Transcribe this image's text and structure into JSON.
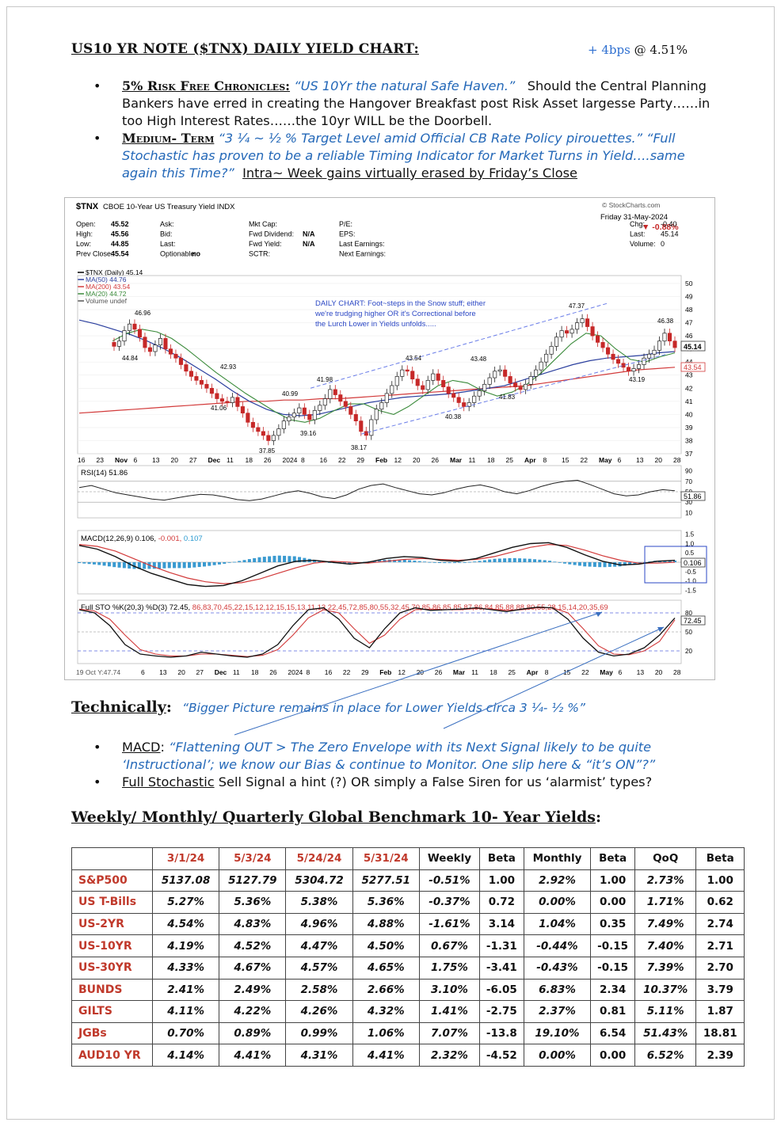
{
  "header": {
    "title": "US10 YR NOTE ($TNX) DAILY YIELD CHART",
    "colon": ":",
    "change_label": "+ 4bps",
    "change_value": "@ 4.51%"
  },
  "bullets_top": [
    {
      "head": "5% Risk Free Chronicles:",
      "quote": "“US 10Yr the natural Safe Haven.”",
      "text": "Should the Central Planning Bankers have erred in creating the Hangover Breakfast post Risk Asset largesse Party……in too High Interest Rates……the 10yr WILL be the Doorbell."
    },
    {
      "head": "Medium- Term",
      "quote": "“3 ¼ ~ ½ % Target Level amid Official CB Rate Policy pirouettes.” “Full Stochastic has proven to be a  reliable Timing Indicator for Market Turns in Yield….same again this Time?”",
      "text": "Intra~ Week gains virtually erased by Friday’s Close"
    }
  ],
  "chart": {
    "symbol": "$TNX",
    "name": "CBOE 10-Year US Treasury Yield INDX",
    "watermark": "© StockCharts.com",
    "date_line": "Friday  31-May-2024",
    "pct_change": "▼ -0.88%",
    "quote_rows": [
      [
        "Open:",
        "45.52",
        "Ask:",
        "",
        "Mkt Cap:",
        "",
        "P/E:",
        "",
        "Chg:",
        "-0.40"
      ],
      [
        "High:",
        "45.56",
        "Bid:",
        "",
        "Fwd Dividend:",
        "N/A",
        "EPS:",
        "",
        "Last:",
        "45.14"
      ],
      [
        "Low:",
        "44.85",
        "Last:",
        "",
        "Fwd Yield:",
        "N/A",
        "Last Earnings:",
        "",
        "Volume:",
        "0"
      ],
      [
        "Prev Close:",
        "45.54",
        "Optionable:",
        "no",
        "SCTR:",
        "",
        "Next Earnings:",
        "",
        "",
        ""
      ]
    ],
    "legend": [
      {
        "label": "$TNX (Daily) 45.14",
        "color": "#000000"
      },
      {
        "label": "MA(50) 44.76",
        "color": "#2b3f9e"
      },
      {
        "label": "MA(200) 43.54",
        "color": "#d23a3a"
      },
      {
        "label": "MA(20) 44.72",
        "color": "#3a8a3a"
      },
      {
        "label": "Volume undef",
        "color": "#555555"
      }
    ],
    "annotation": [
      "DAILY CHART: Foot~steps in the Snow stuff; either",
      "we're trudging higher OR it's Correctional before",
      "the Lurch Lower in Yields unfolds....."
    ],
    "price_labels": [
      "46.96",
      "44.84",
      "42.93",
      "41.06",
      "40.99",
      "41.98",
      "39.16",
      "37.85",
      "38.17",
      "43.54",
      "43.48",
      "40.38",
      "41.83",
      "47.37",
      "46.38",
      "43.19"
    ],
    "y_ticks": [
      "50",
      "49",
      "48",
      "47",
      "46",
      "45",
      "44",
      "43",
      "42",
      "41",
      "40",
      "39",
      "38",
      "37"
    ],
    "last_label": "45.14",
    "ma200_label": "43.54",
    "x_ticks": [
      "16",
      "23",
      "Nov",
      "6",
      "13",
      "20",
      "27",
      "Dec",
      "11",
      "18",
      "26",
      "2024",
      "8",
      "16",
      "22",
      "29",
      "Feb",
      "12",
      "20",
      "26",
      "Mar",
      "11",
      "18",
      "25",
      "Apr",
      "8",
      "15",
      "22",
      "May",
      "6",
      "13",
      "20",
      "28"
    ],
    "rsi_label": "RSI(14) 51.86",
    "rsi_ticks": [
      "90",
      "70",
      "50",
      "30",
      "10"
    ],
    "rsi_last": "51.86",
    "macd_label": "MACD(12,26,9) 0.106,",
    "macd_signal": "-0.001,",
    "macd_hist": "0.107",
    "macd_ticks": [
      "1.5",
      "1.0",
      "0.5",
      "-0.5",
      "-1.0",
      "-1.5"
    ],
    "macd_last": "0.106",
    "sto_label": "Full STO %K(20,3) %D(3) 72.45,",
    "sto_d": [
      86,
      83,
      70,
      45,
      22,
      15,
      12,
      12,
      15,
      15,
      13,
      11,
      13,
      22,
      45,
      72,
      85,
      80,
      55,
      32,
      45,
      70,
      85,
      86,
      85,
      85,
      87,
      86,
      84,
      85,
      88,
      88,
      80,
      55,
      28,
      15,
      14,
      20,
      35,
      69
    ],
    "sto_ticks": [
      "80",
      "50",
      "20"
    ],
    "sto_last": "72.45",
    "bottom_left": "19 Oct Y:47.74",
    "bottom_ticks": [
      "6",
      "13",
      "20",
      "27",
      "Dec",
      "11",
      "18",
      "26",
      "2024",
      "8",
      "16",
      "22",
      "29",
      "Feb",
      "12",
      "20",
      "26",
      "Mar",
      "11",
      "18",
      "25",
      "Apr",
      "8",
      "15",
      "22",
      "May",
      "6",
      "13",
      "20",
      "28"
    ],
    "price_series": [
      45.2,
      45.6,
      46.4,
      46.9,
      46.5,
      45.9,
      45.1,
      44.8,
      45.3,
      45.8,
      45.0,
      44.6,
      44.3,
      43.8,
      43.3,
      42.9,
      42.6,
      42.3,
      42.0,
      41.6,
      41.2,
      41.0,
      40.9,
      41.3,
      40.6,
      40.1,
      39.4,
      39.0,
      38.7,
      38.4,
      38.0,
      38.4,
      38.9,
      39.5,
      39.8,
      40.1,
      40.5,
      40.0,
      39.6,
      40.3,
      40.7,
      41.2,
      41.9,
      41.5,
      41.0,
      40.6,
      40.0,
      39.5,
      38.7,
      38.4,
      39.6,
      40.4,
      40.9,
      41.6,
      42.2,
      42.9,
      43.4,
      43.3,
      42.7,
      42.2,
      41.9,
      42.6,
      43.1,
      42.6,
      42.1,
      41.6,
      41.3,
      40.9,
      40.6,
      40.9,
      41.4,
      41.8,
      42.3,
      42.8,
      43.3,
      43.4,
      42.9,
      42.4,
      42.1,
      41.9,
      42.3,
      42.9,
      43.4,
      44.0,
      44.6,
      45.2,
      45.9,
      46.4,
      46.2,
      46.5,
      47.0,
      47.3,
      46.7,
      46.0,
      45.5,
      45.1,
      44.6,
      44.2,
      43.9,
      43.6,
      43.3,
      43.5,
      43.8,
      44.3,
      44.6,
      44.9,
      45.6,
      46.2,
      45.6,
      45.1
    ],
    "ma50_series": [
      47.2,
      46.9,
      46.5,
      46.1,
      45.6,
      45.0,
      44.3,
      43.5,
      42.7,
      41.8,
      41.0,
      40.4,
      40.0,
      39.9,
      40.0,
      40.3,
      40.6,
      40.9,
      41.1,
      41.3,
      41.4,
      41.5,
      41.6,
      41.8,
      42.0,
      42.2,
      42.6,
      43.0,
      43.4,
      43.8,
      44.1,
      44.3,
      44.4,
      44.5,
      44.7,
      44.8
    ],
    "ma200_series": [
      40.1,
      40.2,
      40.3,
      40.4,
      40.5,
      40.6,
      40.7,
      40.8,
      40.9,
      41.0,
      41.0,
      41.1,
      41.1,
      41.2,
      41.2,
      41.3,
      41.4,
      41.5,
      41.6,
      41.7,
      41.8,
      41.9,
      42.0,
      42.1,
      42.2,
      42.4,
      42.6,
      42.8,
      43.0,
      43.2,
      43.4,
      43.5,
      43.6
    ],
    "ma20_series": [
      45.6,
      46.2,
      46.5,
      46.3,
      45.8,
      45.0,
      44.1,
      43.2,
      42.4,
      41.6,
      40.9,
      40.2,
      39.6,
      39.4,
      39.7,
      40.3,
      40.8,
      40.8,
      40.3,
      40.0,
      40.6,
      41.4,
      42.2,
      42.6,
      42.4,
      41.8,
      41.4,
      41.7,
      42.3,
      43.2,
      44.3,
      45.4,
      46.2,
      46.0,
      45.0,
      44.2,
      44.0,
      44.4,
      44.7
    ],
    "rsi_series": [
      58,
      62,
      55,
      48,
      44,
      40,
      36,
      34,
      38,
      42,
      45,
      44,
      40,
      35,
      33,
      36,
      42,
      48,
      52,
      47,
      40,
      37,
      44,
      55,
      62,
      65,
      58,
      52,
      46,
      44,
      48,
      55,
      60,
      63,
      58,
      50,
      46,
      52,
      60,
      66,
      70,
      72,
      64,
      55,
      46,
      42,
      44,
      50,
      54,
      52
    ],
    "macd_line": [
      0.9,
      0.7,
      0.3,
      -0.2,
      -0.6,
      -0.9,
      -1.2,
      -1.3,
      -1.25,
      -1.0,
      -0.6,
      -0.2,
      0.05,
      0.1,
      0.0,
      -0.1,
      0.0,
      0.2,
      0.3,
      0.25,
      0.1,
      0.05,
      0.2,
      0.5,
      0.8,
      1.0,
      1.05,
      0.8,
      0.4,
      0.05,
      -0.15,
      -0.1,
      0.05,
      0.1
    ],
    "macd_signal_line": [
      0.95,
      0.85,
      0.6,
      0.2,
      -0.2,
      -0.55,
      -0.85,
      -1.05,
      -1.15,
      -1.1,
      -0.9,
      -0.6,
      -0.3,
      -0.05,
      0.05,
      0.0,
      -0.05,
      0.05,
      0.15,
      0.2,
      0.15,
      0.1,
      0.15,
      0.3,
      0.55,
      0.8,
      0.95,
      0.9,
      0.65,
      0.35,
      0.1,
      -0.05,
      -0.05,
      0.0
    ],
    "sto_k": [
      85,
      80,
      60,
      30,
      15,
      12,
      10,
      12,
      18,
      15,
      12,
      10,
      15,
      30,
      60,
      85,
      88,
      70,
      40,
      25,
      55,
      80,
      88,
      84,
      85,
      86,
      88,
      85,
      82,
      86,
      89,
      88,
      70,
      40,
      18,
      12,
      15,
      25,
      45,
      72
    ]
  },
  "technically": {
    "title": "Technically",
    "colon": ":",
    "quote": "“Bigger Picture remains in place for Lower Yields circa 3 ¼- ½ %”"
  },
  "bullets_bottom": [
    {
      "head": "MACD",
      "rest": ":",
      "quote": "“Flattening OUT > The Zero Envelope with its Next Signal likely to be quite ‘Instructional’; we know our Bias & continue to Monitor. One slip here & “it’s ON”?”"
    },
    {
      "head": "Full Stochastic",
      "rest": " Sell Signal a hint (?) OR simply a False Siren for us ‘alarmist’ types?",
      "quote": ""
    }
  ],
  "benchmark": {
    "title": "Weekly/ Monthly/ Quarterly Global Benchmark 10- Year Yields",
    "colon": ":",
    "columns": [
      "3/1/24",
      "5/3/24",
      "5/24/24",
      "5/31/24",
      "Weekly",
      "Beta",
      "Monthly",
      "Beta",
      "QoQ",
      "Beta"
    ],
    "rows": [
      {
        "label": "S&P500",
        "values": [
          "5137.08",
          "5127.79",
          "5304.72",
          "5277.51",
          "-0.51%",
          "1.00",
          "2.92%",
          "1.00",
          "2.73%",
          "1.00"
        ]
      },
      {
        "label": "US T-Bills",
        "values": [
          "5.27%",
          "5.36%",
          "5.38%",
          "5.36%",
          "-0.37%",
          "0.72",
          "0.00%",
          "0.00",
          "1.71%",
          "0.62"
        ]
      },
      {
        "label": "US-2YR",
        "values": [
          "4.54%",
          "4.83%",
          "4.96%",
          "4.88%",
          "-1.61%",
          "3.14",
          "1.04%",
          "0.35",
          "7.49%",
          "2.74"
        ]
      },
      {
        "label": "US-10YR",
        "values": [
          "4.19%",
          "4.52%",
          "4.47%",
          "4.50%",
          "0.67%",
          "-1.31",
          "-0.44%",
          "-0.15",
          "7.40%",
          "2.71"
        ]
      },
      {
        "label": "US-30YR",
        "values": [
          "4.33%",
          "4.67%",
          "4.57%",
          "4.65%",
          "1.75%",
          "-3.41",
          "-0.43%",
          "-0.15",
          "7.39%",
          "2.70"
        ]
      },
      {
        "label": "BUNDS",
        "values": [
          "2.41%",
          "2.49%",
          "2.58%",
          "2.66%",
          "3.10%",
          "-6.05",
          "6.83%",
          "2.34",
          "10.37%",
          "3.79"
        ]
      },
      {
        "label": "GILTS",
        "values": [
          "4.11%",
          "4.22%",
          "4.26%",
          "4.32%",
          "1.41%",
          "-2.75",
          "2.37%",
          "0.81",
          "5.11%",
          "1.87"
        ]
      },
      {
        "label": "JGBs",
        "values": [
          "0.70%",
          "0.89%",
          "0.99%",
          "1.06%",
          "7.07%",
          "-13.8",
          "19.10%",
          "6.54",
          "51.43%",
          "18.81"
        ]
      },
      {
        "label": "AUD10 YR",
        "values": [
          "4.14%",
          "4.41%",
          "4.31%",
          "4.41%",
          "2.32%",
          "-4.52",
          "0.00%",
          "0.00",
          "6.52%",
          "2.39"
        ]
      }
    ]
  }
}
